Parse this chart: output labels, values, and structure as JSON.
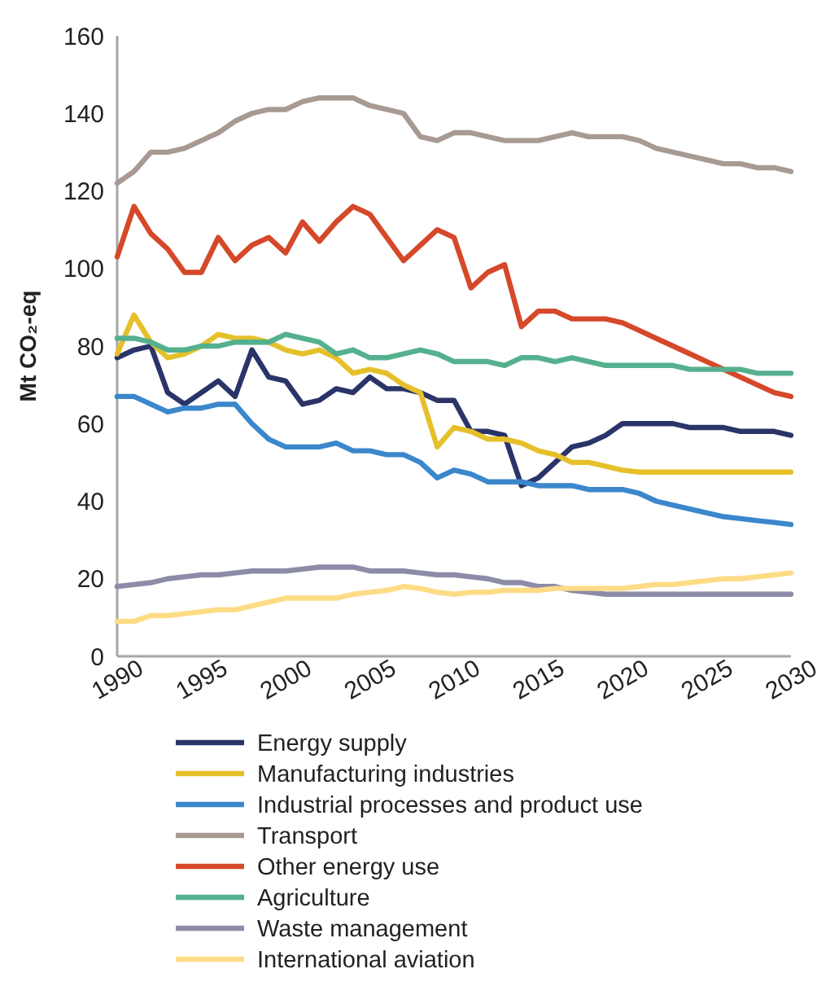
{
  "chart_data": {
    "type": "line",
    "ylabel": "Mt CO₂-eq",
    "x": [
      1990,
      1991,
      1992,
      1993,
      1994,
      1995,
      1996,
      1997,
      1998,
      1999,
      2000,
      2001,
      2002,
      2003,
      2004,
      2005,
      2006,
      2007,
      2008,
      2009,
      2010,
      2011,
      2012,
      2013,
      2014,
      2015,
      2016,
      2017,
      2018,
      2019,
      2020,
      2021,
      2022,
      2023,
      2024,
      2025,
      2026,
      2027,
      2028,
      2029,
      2030
    ],
    "xlim": [
      1990,
      2030
    ],
    "xticks": [
      1990,
      1995,
      2000,
      2005,
      2010,
      2015,
      2020,
      2025,
      2030
    ],
    "ylim": [
      0,
      160
    ],
    "yticks": [
      0,
      20,
      40,
      60,
      80,
      100,
      120,
      140,
      160
    ],
    "grid": false,
    "legend": "bottom",
    "marker": "none",
    "line_style": "solid",
    "series": [
      {
        "name": "Energy supply",
        "color": "#2a3468",
        "values": [
          77,
          79,
          80,
          68,
          65,
          68,
          71,
          67,
          79,
          72,
          71,
          65,
          66,
          69,
          68,
          72,
          69,
          69,
          68,
          66,
          66,
          58,
          58,
          57,
          44,
          46,
          50,
          54,
          55,
          57,
          60,
          60,
          60,
          60,
          59,
          59,
          59,
          58,
          58,
          58,
          57
        ]
      },
      {
        "name": "Manufacturing industries",
        "color": "#e6c02a",
        "values": [
          78,
          88,
          81,
          77,
          78,
          80,
          83,
          82,
          82,
          81,
          79,
          78,
          79,
          77,
          73,
          74,
          73,
          70,
          68,
          54,
          59,
          58,
          56,
          56,
          55,
          53,
          52,
          50,
          50,
          49,
          48,
          47.5,
          47.5,
          47.5,
          47.5,
          47.5,
          47.5,
          47.5,
          47.5,
          47.5,
          47.5
        ]
      },
      {
        "name": "Industrial processes and product use",
        "color": "#3b87cc",
        "values": [
          67,
          67,
          65,
          63,
          64,
          64,
          65,
          65,
          60,
          56,
          54,
          54,
          54,
          55,
          53,
          53,
          52,
          52,
          50,
          46,
          48,
          47,
          45,
          45,
          45,
          44,
          44,
          44,
          43,
          43,
          43,
          42,
          40,
          39,
          38,
          37,
          36,
          35.5,
          35,
          34.5,
          34
        ]
      },
      {
        "name": "Transport",
        "color": "#a89a92",
        "values": [
          122,
          125,
          130,
          130,
          131,
          133,
          135,
          138,
          140,
          141,
          141,
          143,
          144,
          144,
          144,
          142,
          141,
          140,
          134,
          133,
          135,
          135,
          134,
          133,
          133,
          133,
          134,
          135,
          134,
          134,
          134,
          133,
          131,
          130,
          129,
          128,
          127,
          127,
          126,
          126,
          125
        ]
      },
      {
        "name": "Other energy use",
        "color": "#d5482a",
        "values": [
          103,
          116,
          109,
          105,
          99,
          99,
          108,
          102,
          106,
          108,
          104,
          112,
          107,
          112,
          116,
          114,
          108,
          102,
          106,
          110,
          108,
          95,
          99,
          101,
          85,
          89,
          89,
          87,
          87,
          87,
          86,
          84,
          82,
          80,
          78,
          76,
          74,
          72,
          70,
          68,
          67
        ]
      },
      {
        "name": "Agriculture",
        "color": "#55b08e",
        "values": [
          82,
          82,
          81,
          79,
          79,
          80,
          80,
          81,
          81,
          81,
          83,
          82,
          81,
          78,
          79,
          77,
          77,
          78,
          79,
          78,
          76,
          76,
          76,
          75,
          77,
          77,
          76,
          77,
          76,
          75,
          75,
          75,
          75,
          75,
          74,
          74,
          74,
          74,
          73,
          73,
          73
        ]
      },
      {
        "name": "Waste management",
        "color": "#8c8ca8",
        "values": [
          18,
          18.5,
          19,
          20,
          20.5,
          21,
          21,
          21.5,
          22,
          22,
          22,
          22.5,
          23,
          23,
          23,
          22,
          22,
          22,
          21.5,
          21,
          21,
          20.5,
          20,
          19,
          19,
          18,
          18,
          17,
          16.5,
          16,
          16,
          16,
          16,
          16,
          16,
          16,
          16,
          16,
          16,
          16,
          16
        ]
      },
      {
        "name": "International aviation",
        "color": "#fedc85",
        "values": [
          9,
          9,
          10.5,
          10.5,
          11,
          11.5,
          12,
          12,
          13,
          14,
          15,
          15,
          15,
          15,
          16,
          16.5,
          17,
          18,
          17.5,
          16.5,
          16,
          16.5,
          16.5,
          17,
          17,
          17,
          17.5,
          17.5,
          17.5,
          17.5,
          17.5,
          18,
          18.5,
          18.5,
          19,
          19.5,
          20,
          20,
          20.5,
          21,
          21.5
        ]
      }
    ]
  }
}
